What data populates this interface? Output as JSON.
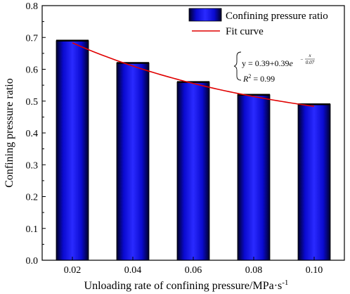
{
  "chart_data": {
    "type": "bar",
    "categories": [
      "0.02",
      "0.04",
      "0.06",
      "0.08",
      "0.10"
    ],
    "values": [
      0.69,
      0.62,
      0.56,
      0.52,
      0.49
    ],
    "xlabel_main": "Unloading rate of confining pressure/MPa·s",
    "xlabel_sup": "-1",
    "ylabel": "Confining pressure ratio",
    "ylim": [
      0,
      0.8
    ],
    "yticks": [
      "0.0",
      "0.1",
      "0.2",
      "0.3",
      "0.4",
      "0.5",
      "0.6",
      "0.7",
      "0.8"
    ],
    "legend": {
      "placement": "top-right",
      "bar_label": "Confining pressure ratio",
      "line_label": "Fit curve"
    },
    "fit": {
      "a": 0.39,
      "b": 0.39,
      "t": 0.07,
      "eq_prefix": "y = 0.39+0.39",
      "eq_e": "e",
      "eq_exp_num": "x",
      "eq_exp_den": "0.07",
      "r2_label": "R",
      "r2_sup": "2",
      "r2_value": " = 0.99"
    },
    "colors": {
      "bar": "#1010f0",
      "bar_edge": "#000000",
      "fit": "#e00000"
    }
  }
}
